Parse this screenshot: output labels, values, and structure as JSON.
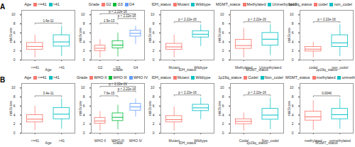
{
  "chart_data": [
    {
      "type": "box",
      "panel": "A",
      "legend": "top",
      "legend_title": "Age",
      "x_label": "Age",
      "y_label": "riskScore",
      "categories": [
        "<=41",
        ">41"
      ],
      "colors": [
        "#F8766D",
        "#00BFC4"
      ],
      "boxes": [
        {
          "low": 0.5,
          "q1": 2.3,
          "median": 3.0,
          "q3": 3.8,
          "high": 5.5
        },
        {
          "low": 0.8,
          "q1": 3.0,
          "median": 4.0,
          "q3": 5.5,
          "high": 7.5
        }
      ],
      "comparisons": [
        {
          "groups": [
            "<=41",
            ">41"
          ],
          "label": "1.6e-11"
        }
      ],
      "ylim": [
        0,
        11
      ],
      "yticks": [
        0,
        2,
        4,
        6,
        8,
        10
      ]
    },
    {
      "type": "box",
      "panel": "A",
      "legend": "top",
      "legend_title": "Grade",
      "x_label": "Grade",
      "y_label": "riskScore",
      "categories": [
        "G2",
        "G3",
        "G4"
      ],
      "colors": [
        "#F8766D",
        "#00BA38",
        "#619CFF"
      ],
      "boxes": [
        {
          "low": 0.5,
          "q1": 2.0,
          "median": 2.6,
          "q3": 3.2,
          "high": 4.5
        },
        {
          "low": 0.7,
          "q1": 2.6,
          "median": 3.3,
          "q3": 4.2,
          "high": 6.0
        },
        {
          "low": 3.5,
          "q1": 5.2,
          "median": 5.9,
          "q3": 6.5,
          "high": 7.5
        }
      ],
      "comparisons": [
        {
          "groups": [
            "G2",
            "G3"
          ],
          "label": "1.5e-13"
        },
        {
          "groups": [
            "G3",
            "G4"
          ],
          "label": "p < 2.22e-16"
        },
        {
          "groups": [
            "G2",
            "G4"
          ],
          "label": "p < 2.22e-16"
        }
      ],
      "ylim": [
        0,
        11
      ],
      "yticks": [
        0,
        2,
        4,
        6,
        8,
        10
      ]
    },
    {
      "type": "box",
      "panel": "A",
      "legend": "top",
      "legend_title": "IDH_status",
      "x_label": "IDH_status",
      "y_label": "riskScore",
      "categories": [
        "Mutant",
        "Wildtype"
      ],
      "colors": [
        "#F8766D",
        "#00BFC4"
      ],
      "boxes": [
        {
          "low": 0.5,
          "q1": 2.3,
          "median": 2.9,
          "q3": 3.6,
          "high": 5.5
        },
        {
          "low": 3.0,
          "q1": 5.0,
          "median": 5.7,
          "q3": 6.4,
          "high": 7.8
        }
      ],
      "comparisons": [
        {
          "groups": [
            "Mutant",
            "Wildtype"
          ],
          "label": "p < 2.22e-16"
        }
      ],
      "ylim": [
        0,
        11
      ],
      "yticks": [
        0,
        2,
        4,
        6,
        8,
        10
      ]
    },
    {
      "type": "box",
      "panel": "A",
      "legend": "top",
      "legend_title": "MGMT_status",
      "x_label": "MGMT_status",
      "y_label": "riskScore",
      "categories": [
        "Methylated",
        "Unmethylated"
      ],
      "colors": [
        "#F8766D",
        "#00BFC4"
      ],
      "boxes": [
        {
          "low": 0.5,
          "q1": 2.5,
          "median": 3.2,
          "q3": 4.5,
          "high": 7.0
        },
        {
          "low": 1.0,
          "q1": 3.2,
          "median": 4.6,
          "q3": 6.0,
          "high": 7.8
        }
      ],
      "comparisons": [
        {
          "groups": [
            "Methylated",
            "Unmethylated"
          ],
          "label": "p < 2.22e-16"
        }
      ],
      "ylim": [
        0,
        11
      ],
      "yticks": [
        0,
        2,
        4,
        6,
        8,
        10
      ]
    },
    {
      "type": "box",
      "panel": "A",
      "legend": "top",
      "legend_title": "1p19q_status",
      "x_label": "1p19q_status",
      "y_label": "riskScore",
      "categories": [
        "codel",
        "non_codel"
      ],
      "colors": [
        "#F8766D",
        "#00BFC4"
      ],
      "boxes": [
        {
          "low": 0.5,
          "q1": 1.9,
          "median": 2.4,
          "q3": 2.9,
          "high": 4.0
        },
        {
          "low": 0.8,
          "q1": 2.9,
          "median": 3.8,
          "q3": 5.5,
          "high": 7.8
        }
      ],
      "comparisons": [
        {
          "groups": [
            "codel",
            "non_codel"
          ],
          "label": "p < 2.22e-16"
        }
      ],
      "ylim": [
        0,
        11
      ],
      "yticks": [
        0,
        2,
        4,
        6,
        8,
        10
      ]
    },
    {
      "type": "box",
      "panel": "B",
      "legend": "top",
      "legend_title": "Age",
      "x_label": "Age",
      "y_label": "riskScore",
      "categories": [
        "<=41",
        ">41"
      ],
      "colors": [
        "#F8766D",
        "#00BFC4"
      ],
      "boxes": [
        {
          "low": 0.6,
          "q1": 2.4,
          "median": 3.1,
          "q3": 4.0,
          "high": 6.0
        },
        {
          "low": 0.9,
          "q1": 3.1,
          "median": 4.2,
          "q3": 5.6,
          "high": 7.6
        }
      ],
      "comparisons": [
        {
          "groups": [
            "<=41",
            ">41"
          ],
          "label": "3.4e-11"
        }
      ],
      "ylim": [
        0,
        11
      ],
      "yticks": [
        0,
        2,
        4,
        6,
        8,
        10
      ]
    },
    {
      "type": "box",
      "panel": "B",
      "legend": "top",
      "legend_title": "Grade",
      "x_label": "Grade",
      "y_label": "riskScore",
      "categories": [
        "WHO II",
        "WHO III",
        "WHO IV"
      ],
      "colors": [
        "#F8766D",
        "#00BA38",
        "#619CFF"
      ],
      "boxes": [
        {
          "low": 0.5,
          "q1": 2.1,
          "median": 2.7,
          "q3": 3.4,
          "high": 4.8
        },
        {
          "low": 0.8,
          "q1": 2.7,
          "median": 3.5,
          "q3": 4.4,
          "high": 6.2
        },
        {
          "low": 3.6,
          "q1": 5.0,
          "median": 5.8,
          "q3": 6.5,
          "high": 7.6
        }
      ],
      "comparisons": [
        {
          "groups": [
            "WHO II",
            "WHO III"
          ],
          "label": "7.6e-15"
        },
        {
          "groups": [
            "WHO III",
            "WHO IV"
          ],
          "label": "p < 2.22e-16"
        },
        {
          "groups": [
            "WHO II",
            "WHO IV"
          ],
          "label": "p < 2.22e-16"
        }
      ],
      "ylim": [
        0,
        11
      ],
      "yticks": [
        0,
        2,
        4,
        6,
        8,
        10
      ]
    },
    {
      "type": "box",
      "panel": "B",
      "legend": "top",
      "legend_title": "IDH_status",
      "x_label": "IDH_status",
      "y_label": "riskScore",
      "categories": [
        "Mutant",
        "Wildtype"
      ],
      "colors": [
        "#F8766D",
        "#00BFC4"
      ],
      "boxes": [
        {
          "low": 0.5,
          "q1": 2.4,
          "median": 3.0,
          "q3": 3.8,
          "high": 5.8
        },
        {
          "low": 3.0,
          "q1": 4.9,
          "median": 5.6,
          "q3": 6.3,
          "high": 7.8
        }
      ],
      "comparisons": [
        {
          "groups": [
            "Mutant",
            "Wildtype"
          ],
          "label": "p < 2.22e-16"
        }
      ],
      "ylim": [
        0,
        11
      ],
      "yticks": [
        0,
        2,
        4,
        6,
        8,
        10
      ]
    },
    {
      "type": "box",
      "panel": "B",
      "legend": "top",
      "legend_title": "1p19q_status",
      "x_label": "1p19q_status",
      "y_label": "riskScore",
      "categories": [
        "Codel",
        "Non_codel"
      ],
      "colors": [
        "#F8766D",
        "#00BFC4"
      ],
      "boxes": [
        {
          "low": 0.5,
          "q1": 2.0,
          "median": 2.6,
          "q3": 3.1,
          "high": 4.5
        },
        {
          "low": 0.8,
          "q1": 3.0,
          "median": 4.0,
          "q3": 5.4,
          "high": 7.8
        }
      ],
      "comparisons": [
        {
          "groups": [
            "Codel",
            "Non_codel"
          ],
          "label": "p < 2.22e-16"
        }
      ],
      "ylim": [
        0,
        11
      ],
      "yticks": [
        0,
        2,
        4,
        6,
        8,
        10
      ]
    },
    {
      "type": "box",
      "panel": "B",
      "legend": "top",
      "legend_title": "MGMT_status",
      "x_label": "MGMT_status",
      "y_label": "riskScore",
      "categories": [
        "methylated",
        "unmethylated"
      ],
      "colors": [
        "#F8766D",
        "#00BFC4"
      ],
      "boxes": [
        {
          "low": 0.6,
          "q1": 2.8,
          "median": 3.6,
          "q3": 4.8,
          "high": 7.2
        },
        {
          "low": 0.9,
          "q1": 3.1,
          "median": 4.1,
          "q3": 5.4,
          "high": 7.6
        }
      ],
      "comparisons": [
        {
          "groups": [
            "methylated",
            "unmethylated"
          ],
          "label": "0.0046"
        }
      ],
      "ylim": [
        0,
        11
      ],
      "yticks": [
        0,
        2,
        4,
        6,
        8,
        10
      ]
    }
  ]
}
